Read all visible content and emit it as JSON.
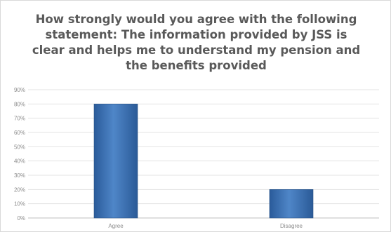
{
  "chart_data": {
    "type": "bar",
    "title": "How strongly would you agree with the following statement: The information provided by JSS is clear and helps me to understand my pension and the benefits provided",
    "categories": [
      "Agree",
      "Disagree"
    ],
    "values": [
      80,
      20
    ],
    "ylim": [
      0,
      90
    ],
    "yticks": [
      "0%",
      "10%",
      "20%",
      "30%",
      "40%",
      "50%",
      "60%",
      "70%",
      "80%",
      "90%"
    ],
    "grid": true,
    "legend": "none",
    "bar_color": "#4f81bd"
  }
}
